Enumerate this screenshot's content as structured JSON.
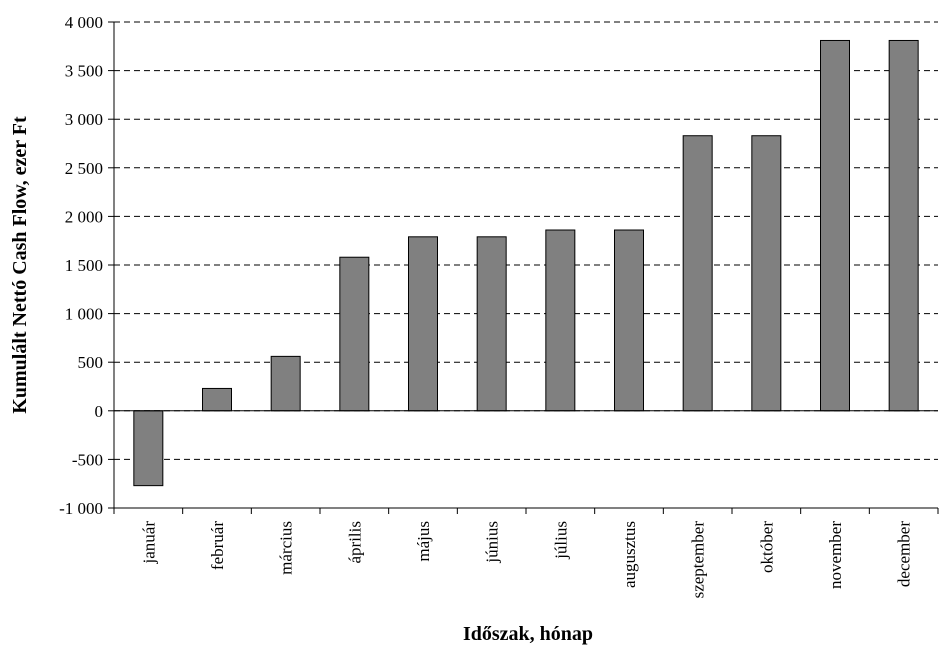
{
  "chart_data": {
    "type": "bar",
    "title": "",
    "xlabel": "Időszak, hónap",
    "ylabel": "Kumulált Nettó Cash Flow, ezer Ft",
    "categories": [
      "január",
      "február",
      "március",
      "április",
      "május",
      "június",
      "július",
      "augusztus",
      "szeptember",
      "október",
      "november",
      "december"
    ],
    "values": [
      -770,
      230,
      560,
      1580,
      1790,
      1790,
      1860,
      1860,
      2830,
      2830,
      3810,
      3810
    ],
    "ylim": [
      -1000,
      4000
    ],
    "yticks": [
      -1000,
      -500,
      0,
      500,
      1000,
      1500,
      2000,
      2500,
      3000,
      3500,
      4000
    ],
    "ytick_labels": [
      "-1 000",
      "-500",
      "0",
      "500",
      "1 000",
      "1 500",
      "2 000",
      "2 500",
      "3 000",
      "3 500",
      "4 000"
    ],
    "grid": "horizontal dashed",
    "legend": "none",
    "colors": {
      "bar": "#808080",
      "bar_stroke": "#000000",
      "grid": "#000000"
    }
  }
}
